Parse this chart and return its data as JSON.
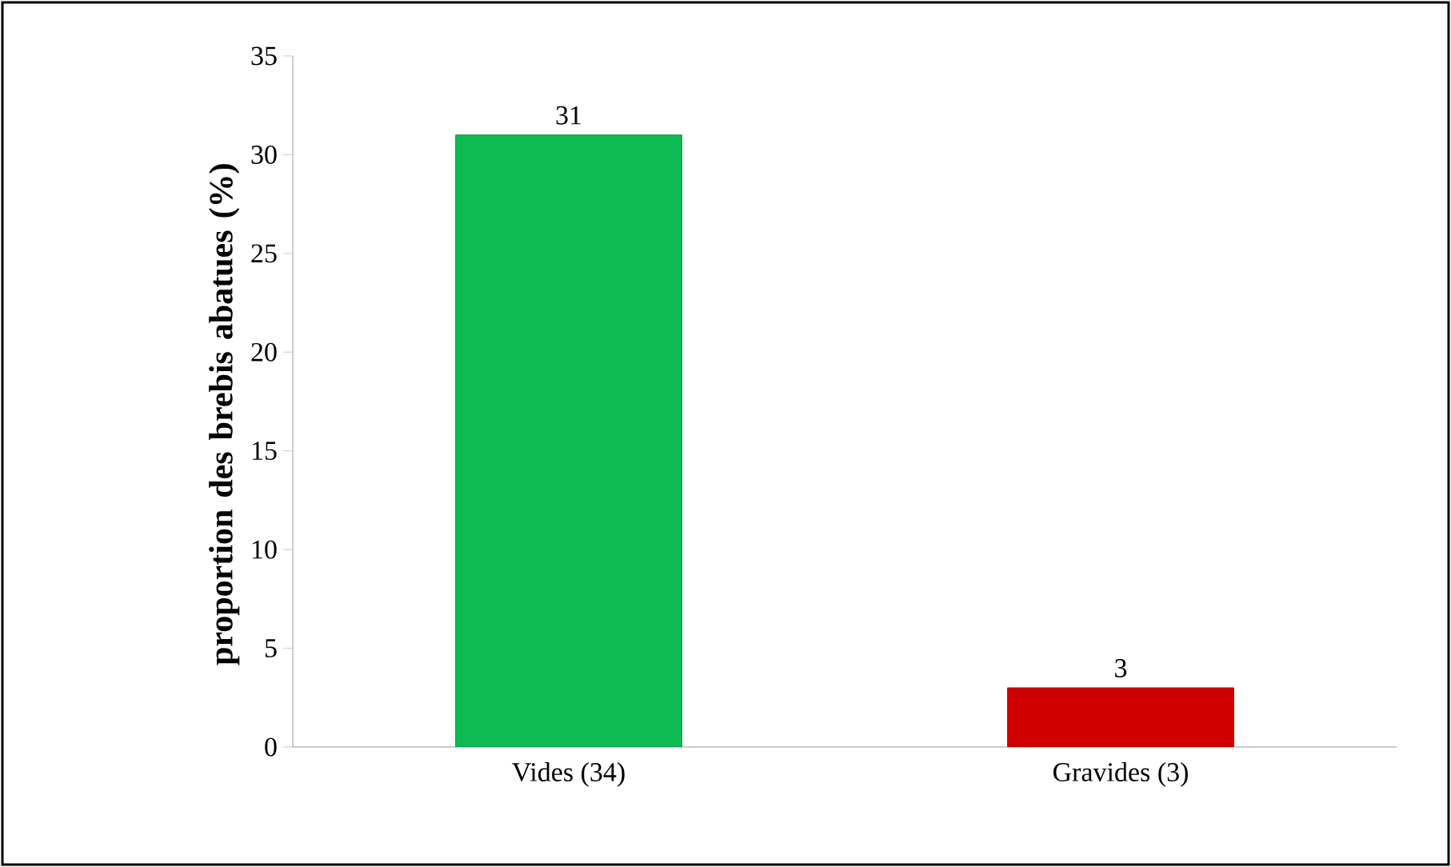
{
  "chart_data": {
    "type": "bar",
    "ylabel": "proportion des brebis abatues (%)",
    "categories": [
      "Vides (34)",
      "Gravides (3)"
    ],
    "values": [
      31,
      3
    ],
    "colors": [
      "#0dbb52",
      "#d10000"
    ],
    "ylim": [
      0,
      35
    ],
    "yticks": [
      0,
      5,
      10,
      15,
      20,
      25,
      30,
      35
    ],
    "data_labels": true,
    "grid": false
  }
}
